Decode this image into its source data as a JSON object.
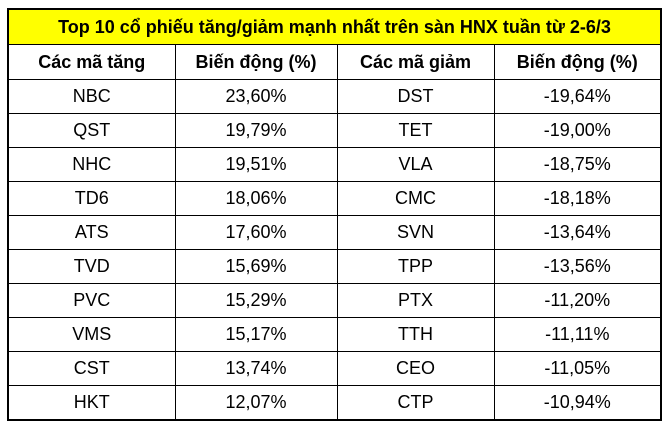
{
  "title": "Top 10 cổ phiếu tăng/giảm mạnh nhất trên sàn HNX tuần từ 2-6/3",
  "table": {
    "header": [
      "Các mã tăng",
      "Biến động (%)",
      "Các mã giảm",
      "Biến động (%)"
    ],
    "rows": [
      [
        "NBC",
        "23,60%",
        "DST",
        "-19,64%"
      ],
      [
        "QST",
        "19,79%",
        "TET",
        "-19,00%"
      ],
      [
        "NHC",
        "19,51%",
        "VLA",
        "-18,75%"
      ],
      [
        "TD6",
        "18,06%",
        "CMC",
        "-18,18%"
      ],
      [
        "ATS",
        "17,60%",
        "SVN",
        "-13,64%"
      ],
      [
        "TVD",
        "15,69%",
        "TPP",
        "-13,56%"
      ],
      [
        "PVC",
        "15,29%",
        "PTX",
        "-11,20%"
      ],
      [
        "VMS",
        "15,17%",
        "TTH",
        "-11,11%"
      ],
      [
        "CST",
        "13,74%",
        "CEO",
        "-11,05%"
      ],
      [
        "HKT",
        "12,07%",
        "CTP",
        "-10,94%"
      ]
    ]
  }
}
